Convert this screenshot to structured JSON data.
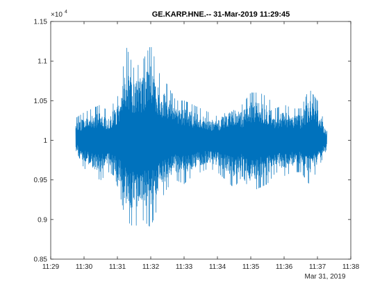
{
  "chart_data": {
    "type": "line",
    "title": "GE.KARP.HNE.-- 31-Mar-2019 11:29:45",
    "xlabel": "",
    "ylabel": "",
    "y_exponent_label": "×10",
    "y_exponent_power": "4",
    "y_multiplier": 10000,
    "date_label": "Mar 31, 2019",
    "xlim": [
      "11:29",
      "11:38"
    ],
    "ylim": [
      0.85,
      1.15
    ],
    "x_ticks": [
      "11:29",
      "11:30",
      "11:31",
      "11:32",
      "11:33",
      "11:34",
      "11:35",
      "11:36",
      "11:37",
      "11:38"
    ],
    "y_ticks": [
      "0.85",
      "0.9",
      "0.95",
      "1",
      "1.05",
      "1.1",
      "1.15"
    ],
    "grid": false,
    "series": [
      {
        "color": "#0072BD",
        "start_time": "11:29:45",
        "end_time": "11:37:17",
        "baseline": 1.0,
        "envelope": {
          "time": [
            "11:29:45",
            "11:30:00",
            "11:30:15",
            "11:30:30",
            "11:30:45",
            "11:30:55",
            "11:31:05",
            "11:31:15",
            "11:31:30",
            "11:31:45",
            "11:32:00",
            "11:32:15",
            "11:32:30",
            "11:32:45",
            "11:33:00",
            "11:33:15",
            "11:33:30",
            "11:33:45",
            "11:34:00",
            "11:34:15",
            "11:34:30",
            "11:34:45",
            "11:35:00",
            "11:35:15",
            "11:35:30",
            "11:35:45",
            "11:36:00",
            "11:36:15",
            "11:36:30",
            "11:36:45",
            "11:37:00",
            "11:37:17"
          ],
          "max": [
            1.028,
            1.035,
            1.04,
            1.045,
            1.035,
            1.05,
            1.06,
            1.12,
            1.09,
            1.1,
            1.12,
            1.085,
            1.07,
            1.05,
            1.05,
            1.045,
            1.04,
            1.035,
            1.03,
            1.045,
            1.05,
            1.045,
            1.06,
            1.06,
            1.055,
            1.04,
            1.045,
            1.04,
            1.04,
            1.065,
            1.05,
            1.012
          ],
          "min": [
            0.988,
            0.965,
            0.955,
            0.95,
            0.96,
            0.955,
            0.93,
            0.9,
            0.89,
            0.9,
            0.89,
            0.92,
            0.94,
            0.95,
            0.945,
            0.955,
            0.96,
            0.965,
            0.96,
            0.95,
            0.94,
            0.955,
            0.935,
            0.94,
            0.945,
            0.96,
            0.955,
            0.96,
            0.96,
            0.945,
            0.962,
            0.99
          ]
        }
      }
    ]
  }
}
